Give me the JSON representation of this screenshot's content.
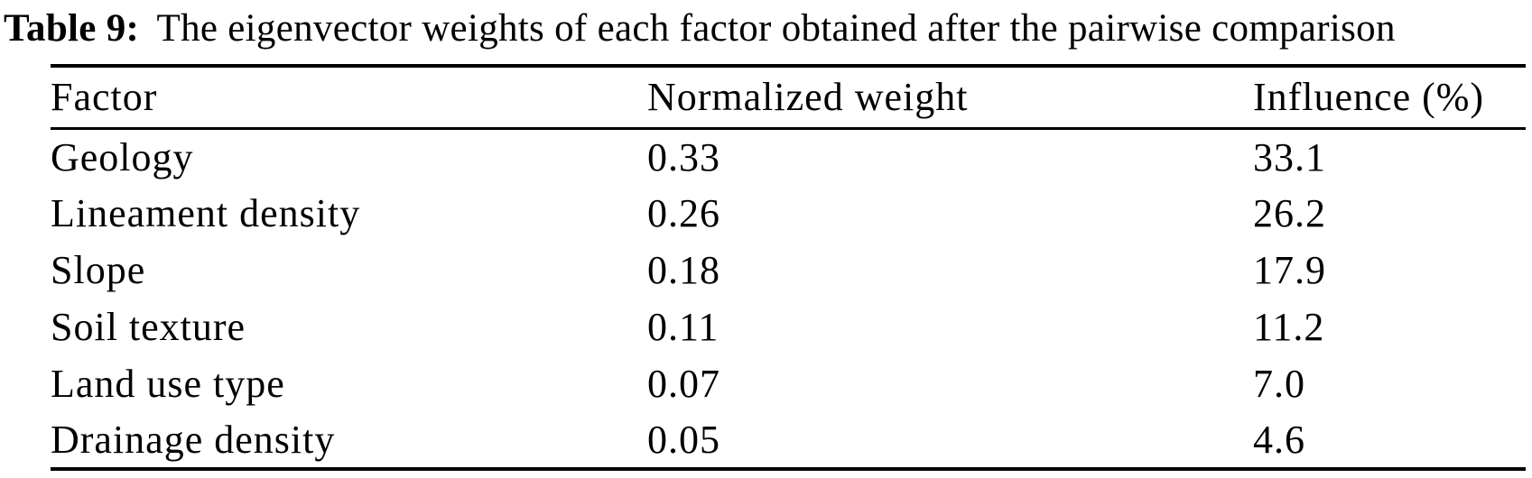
{
  "caption": {
    "label": "Table 9:",
    "text": "The eigenvector weights of each factor obtained after the pairwise comparison"
  },
  "table": {
    "columns": {
      "factor": "Factor",
      "weight": "Normalized weight",
      "influence": "Influence (%)"
    },
    "rows": [
      {
        "factor": "Geology",
        "weight": "0.33",
        "influence": "33.1"
      },
      {
        "factor": "Lineament density",
        "weight": "0.26",
        "influence": "26.2"
      },
      {
        "factor": "Slope",
        "weight": "0.18",
        "influence": "17.9"
      },
      {
        "factor": "Soil texture",
        "weight": "0.11",
        "influence": "11.2"
      },
      {
        "factor": "Land use type",
        "weight": "0.07",
        "influence": "7.0"
      },
      {
        "factor": "Drainage density",
        "weight": "0.05",
        "influence": "4.6"
      }
    ]
  },
  "colors": {
    "text": "#000000",
    "background": "#ffffff",
    "rule": "#000000"
  }
}
